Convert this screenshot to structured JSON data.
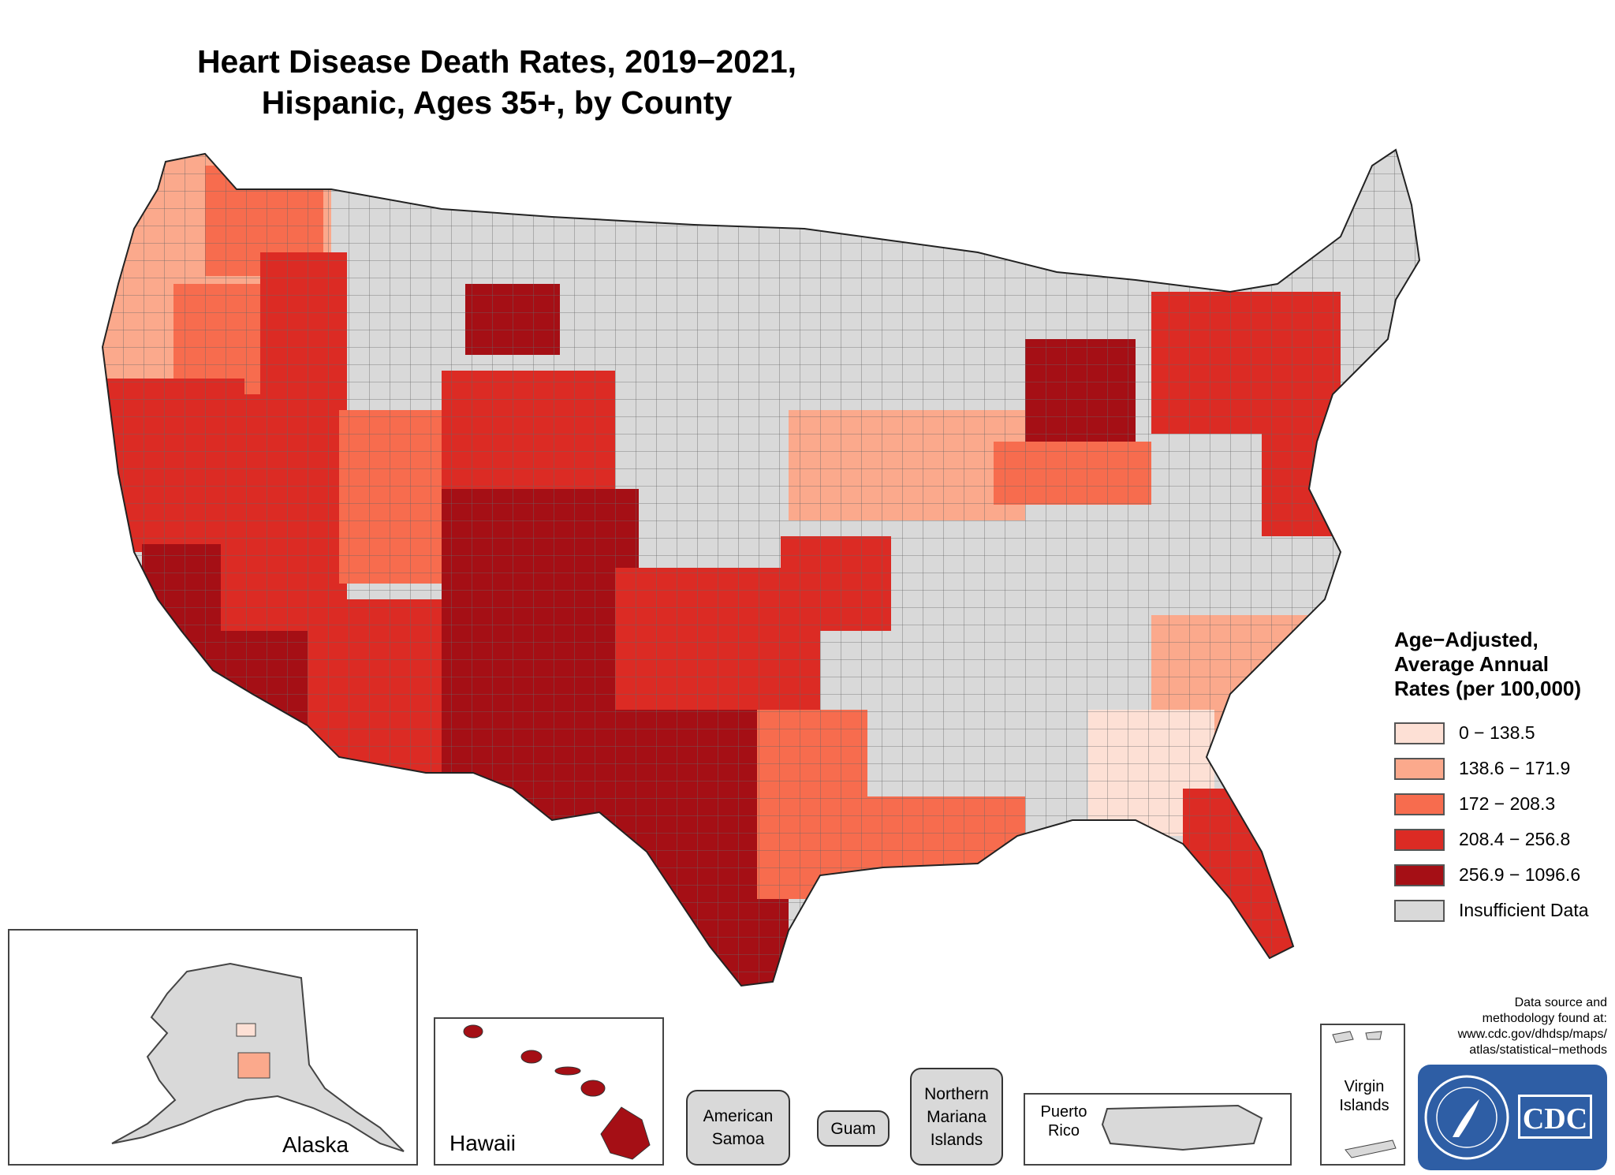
{
  "title": {
    "line1": "Heart Disease Death Rates, 2019−2021,",
    "line2": "Hispanic, Ages 35+, by County"
  },
  "legend": {
    "title_line1": "Age−Adjusted,",
    "title_line2": "Average Annual",
    "title_line3": "Rates (per 100,000)",
    "classes": [
      {
        "label": "0 − 138.5",
        "color": "#fde0d5"
      },
      {
        "label": "138.6 − 171.9",
        "color": "#fba98c"
      },
      {
        "label": "172 − 208.3",
        "color": "#f76c4e"
      },
      {
        "label": "208.4 − 256.8",
        "color": "#dc2b24"
      },
      {
        "label": "256.9 − 1096.6",
        "color": "#a50f15"
      },
      {
        "label": "Insufficient Data",
        "color": "#d9d9d9"
      }
    ]
  },
  "insets": {
    "alaska": "Alaska",
    "hawaii": "Hawaii",
    "american_samoa": "American Samoa",
    "guam": "Guam",
    "northern_mariana": "Northern Mariana Islands",
    "puerto_rico": "Puerto Rico",
    "virgin_islands": "Virgin Islands"
  },
  "source": {
    "line1": "Data source and",
    "line2": "methodology found at:",
    "line3": "www.cdc.gov/dhdsp/maps/",
    "line4": "atlas/statistical−methods"
  },
  "logo": {
    "text": "CDC",
    "color": "#2e5ea5"
  }
}
